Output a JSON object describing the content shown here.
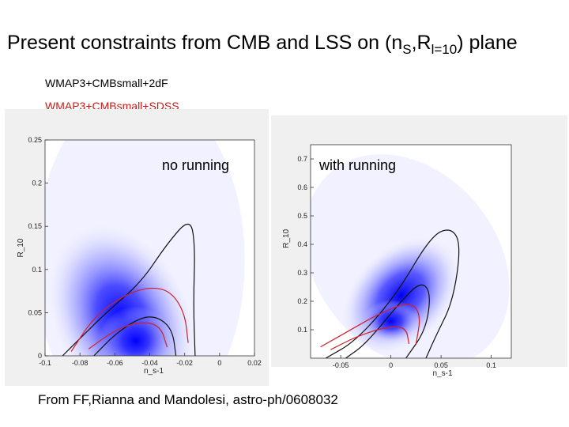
{
  "slide": {
    "title_main": "Present constraints from CMB and LSS on (n",
    "title_sub1": "S",
    "title_mid": ",R",
    "title_sub2": "l=10",
    "title_end": ") plane",
    "legend_black": "WMAP3+CMBsmall+2dF",
    "legend_red": "WMAP3+CMBsmall+SDSS",
    "citation": "From FF,Rianna and Mandolesi, astro-ph/0608032"
  },
  "colors": {
    "black_contour": "#111111",
    "red_contour": "#d0202a",
    "density": "#1a1aff"
  },
  "chart_data": [
    {
      "type": "contour",
      "annotation": "no running",
      "xlabel": "n_s-1",
      "ylabel": "R_10",
      "xlim": [
        -0.1,
        0.02
      ],
      "ylim": [
        0,
        0.25
      ],
      "xticks": [
        "-0.1",
        "-0.08",
        "-0.06",
        "-0.04",
        "-0.02",
        "0",
        "0.02"
      ],
      "yticks": [
        "0",
        "0.05",
        "0.1",
        "0.15",
        "0.2",
        "0.25"
      ],
      "peak": {
        "x": -0.048,
        "y": 0.01
      },
      "series": [
        {
          "color": "black",
          "level": "outer",
          "points": [
            [
              -0.09,
              0
            ],
            [
              -0.08,
              0.02
            ],
            [
              -0.065,
              0.05
            ],
            [
              -0.045,
              0.085
            ],
            [
              -0.03,
              0.13
            ],
            [
              -0.017,
              0.16
            ],
            [
              -0.014,
              0.13
            ],
            [
              -0.015,
              0.06
            ],
            [
              -0.014,
              0
            ]
          ]
        },
        {
          "color": "black",
          "level": "inner",
          "points": [
            [
              -0.072,
              0
            ],
            [
              -0.06,
              0.025
            ],
            [
              -0.045,
              0.045
            ],
            [
              -0.035,
              0.045
            ],
            [
              -0.027,
              0.03
            ],
            [
              -0.025,
              0
            ]
          ]
        },
        {
          "color": "red",
          "level": "outer",
          "points": [
            [
              -0.085,
              0.005
            ],
            [
              -0.072,
              0.045
            ],
            [
              -0.055,
              0.07
            ],
            [
              -0.04,
              0.08
            ],
            [
              -0.028,
              0.075
            ],
            [
              -0.02,
              0.05
            ],
            [
              -0.018,
              0.015
            ]
          ]
        },
        {
          "color": "red",
          "level": "inner",
          "points": [
            [
              -0.075,
              0.008
            ],
            [
              -0.06,
              0.03
            ],
            [
              -0.045,
              0.04
            ],
            [
              -0.034,
              0.035
            ],
            [
              -0.03,
              0.01
            ]
          ]
        }
      ]
    },
    {
      "type": "contour",
      "annotation": "with running",
      "xlabel": "n_s-1",
      "ylabel": "R_10",
      "xlim": [
        -0.08,
        0.12
      ],
      "ylim": [
        0,
        0.75
      ],
      "xticks": [
        "-0.05",
        "0",
        "0.05",
        "0.1"
      ],
      "yticks": [
        "0.1",
        "0.2",
        "0.3",
        "0.4",
        "0.5",
        "0.6",
        "0.7"
      ],
      "peak": {
        "x": 0.0,
        "y": 0.13
      },
      "series": [
        {
          "color": "black",
          "level": "outer",
          "points": [
            [
              -0.065,
              0
            ],
            [
              -0.035,
              0.06
            ],
            [
              0.005,
              0.22
            ],
            [
              0.04,
              0.43
            ],
            [
              0.06,
              0.46
            ],
            [
              0.07,
              0.4
            ],
            [
              0.062,
              0.2
            ],
            [
              0.045,
              0.08
            ],
            [
              0.035,
              0
            ]
          ]
        },
        {
          "color": "black",
          "level": "inner",
          "points": [
            [
              -0.045,
              0
            ],
            [
              -0.025,
              0.05
            ],
            [
              0.01,
              0.2
            ],
            [
              0.03,
              0.27
            ],
            [
              0.04,
              0.23
            ],
            [
              0.035,
              0.1
            ],
            [
              0.015,
              0
            ]
          ]
        },
        {
          "color": "red",
          "level": "outer",
          "points": [
            [
              -0.07,
              0.04
            ],
            [
              -0.04,
              0.1
            ],
            [
              -0.01,
              0.16
            ],
            [
              0.02,
              0.2
            ],
            [
              0.03,
              0.15
            ],
            [
              0.025,
              0.05
            ]
          ]
        },
        {
          "color": "red",
          "level": "inner",
          "points": [
            [
              -0.06,
              0.03
            ],
            [
              -0.035,
              0.075
            ],
            [
              -0.005,
              0.11
            ],
            [
              0.015,
              0.11
            ],
            [
              0.018,
              0.05
            ]
          ]
        }
      ]
    }
  ]
}
